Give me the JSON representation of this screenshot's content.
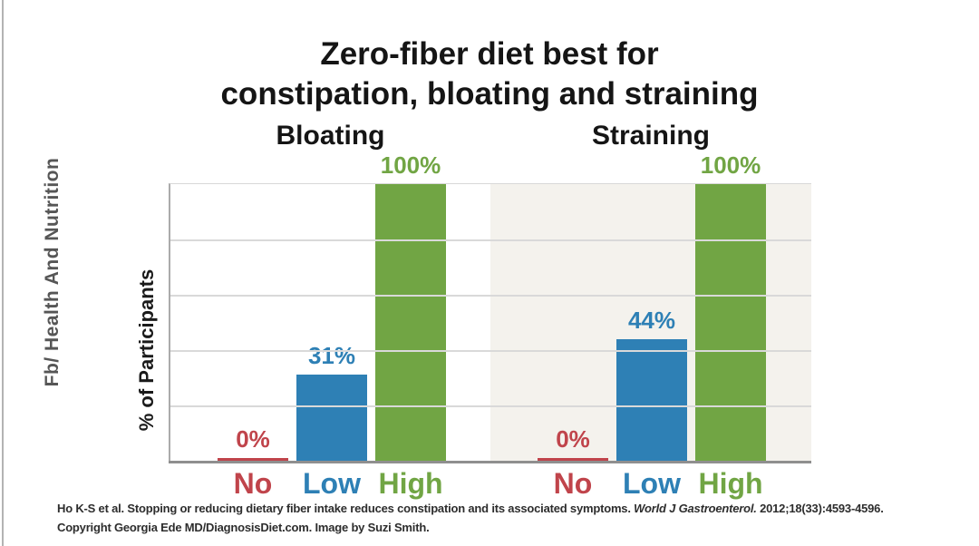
{
  "watermark": "Fb/ Health And Nutrition",
  "title": {
    "line1": "Zero-fiber diet best for",
    "line2": "constipation, bloating and straining"
  },
  "ylabel": "% of Participants",
  "citation": {
    "line1_pre": "Ho K-S et al. Stopping or reducing dietary fiber intake reduces constipation and its associated symptoms. ",
    "line1_journal": "World J Gastroenterol.",
    "line1_post": " 2012;18(33):4593-4596.",
    "line2": "Copyright Georgia Ede MD/DiagnosisDiet.com. Image by Suzi Smith."
  },
  "colors": {
    "no_red": "#c0444b",
    "low_blue": "#2e80b5",
    "high_green": "#71a544",
    "straining_panel_bg": "#f4f2ed",
    "bloating_panel_bg": "#ffffff",
    "gridline": "#d9d9d9",
    "axis": "#8f8f8f",
    "watermark_gray": "#565656"
  },
  "chart_data": {
    "type": "bar",
    "title": "Zero-fiber diet best for constipation, bloating and straining",
    "xlabel": "",
    "ylabel": "% of Participants",
    "ylim": [
      0,
      100
    ],
    "gridline_step": 20,
    "grid": true,
    "legend": false,
    "categories": [
      "No",
      "Low",
      "High"
    ],
    "category_colors": [
      "#c0444b",
      "#2e80b5",
      "#71a544"
    ],
    "panels": [
      {
        "label": "Bloating",
        "background": "#ffffff",
        "values": [
          0,
          31,
          100
        ],
        "value_labels": [
          "0%",
          "31%",
          "100%"
        ]
      },
      {
        "label": "Straining",
        "background": "#f4f2ed",
        "values": [
          0,
          44,
          100
        ],
        "value_labels": [
          "0%",
          "44%",
          "100%"
        ]
      }
    ]
  }
}
